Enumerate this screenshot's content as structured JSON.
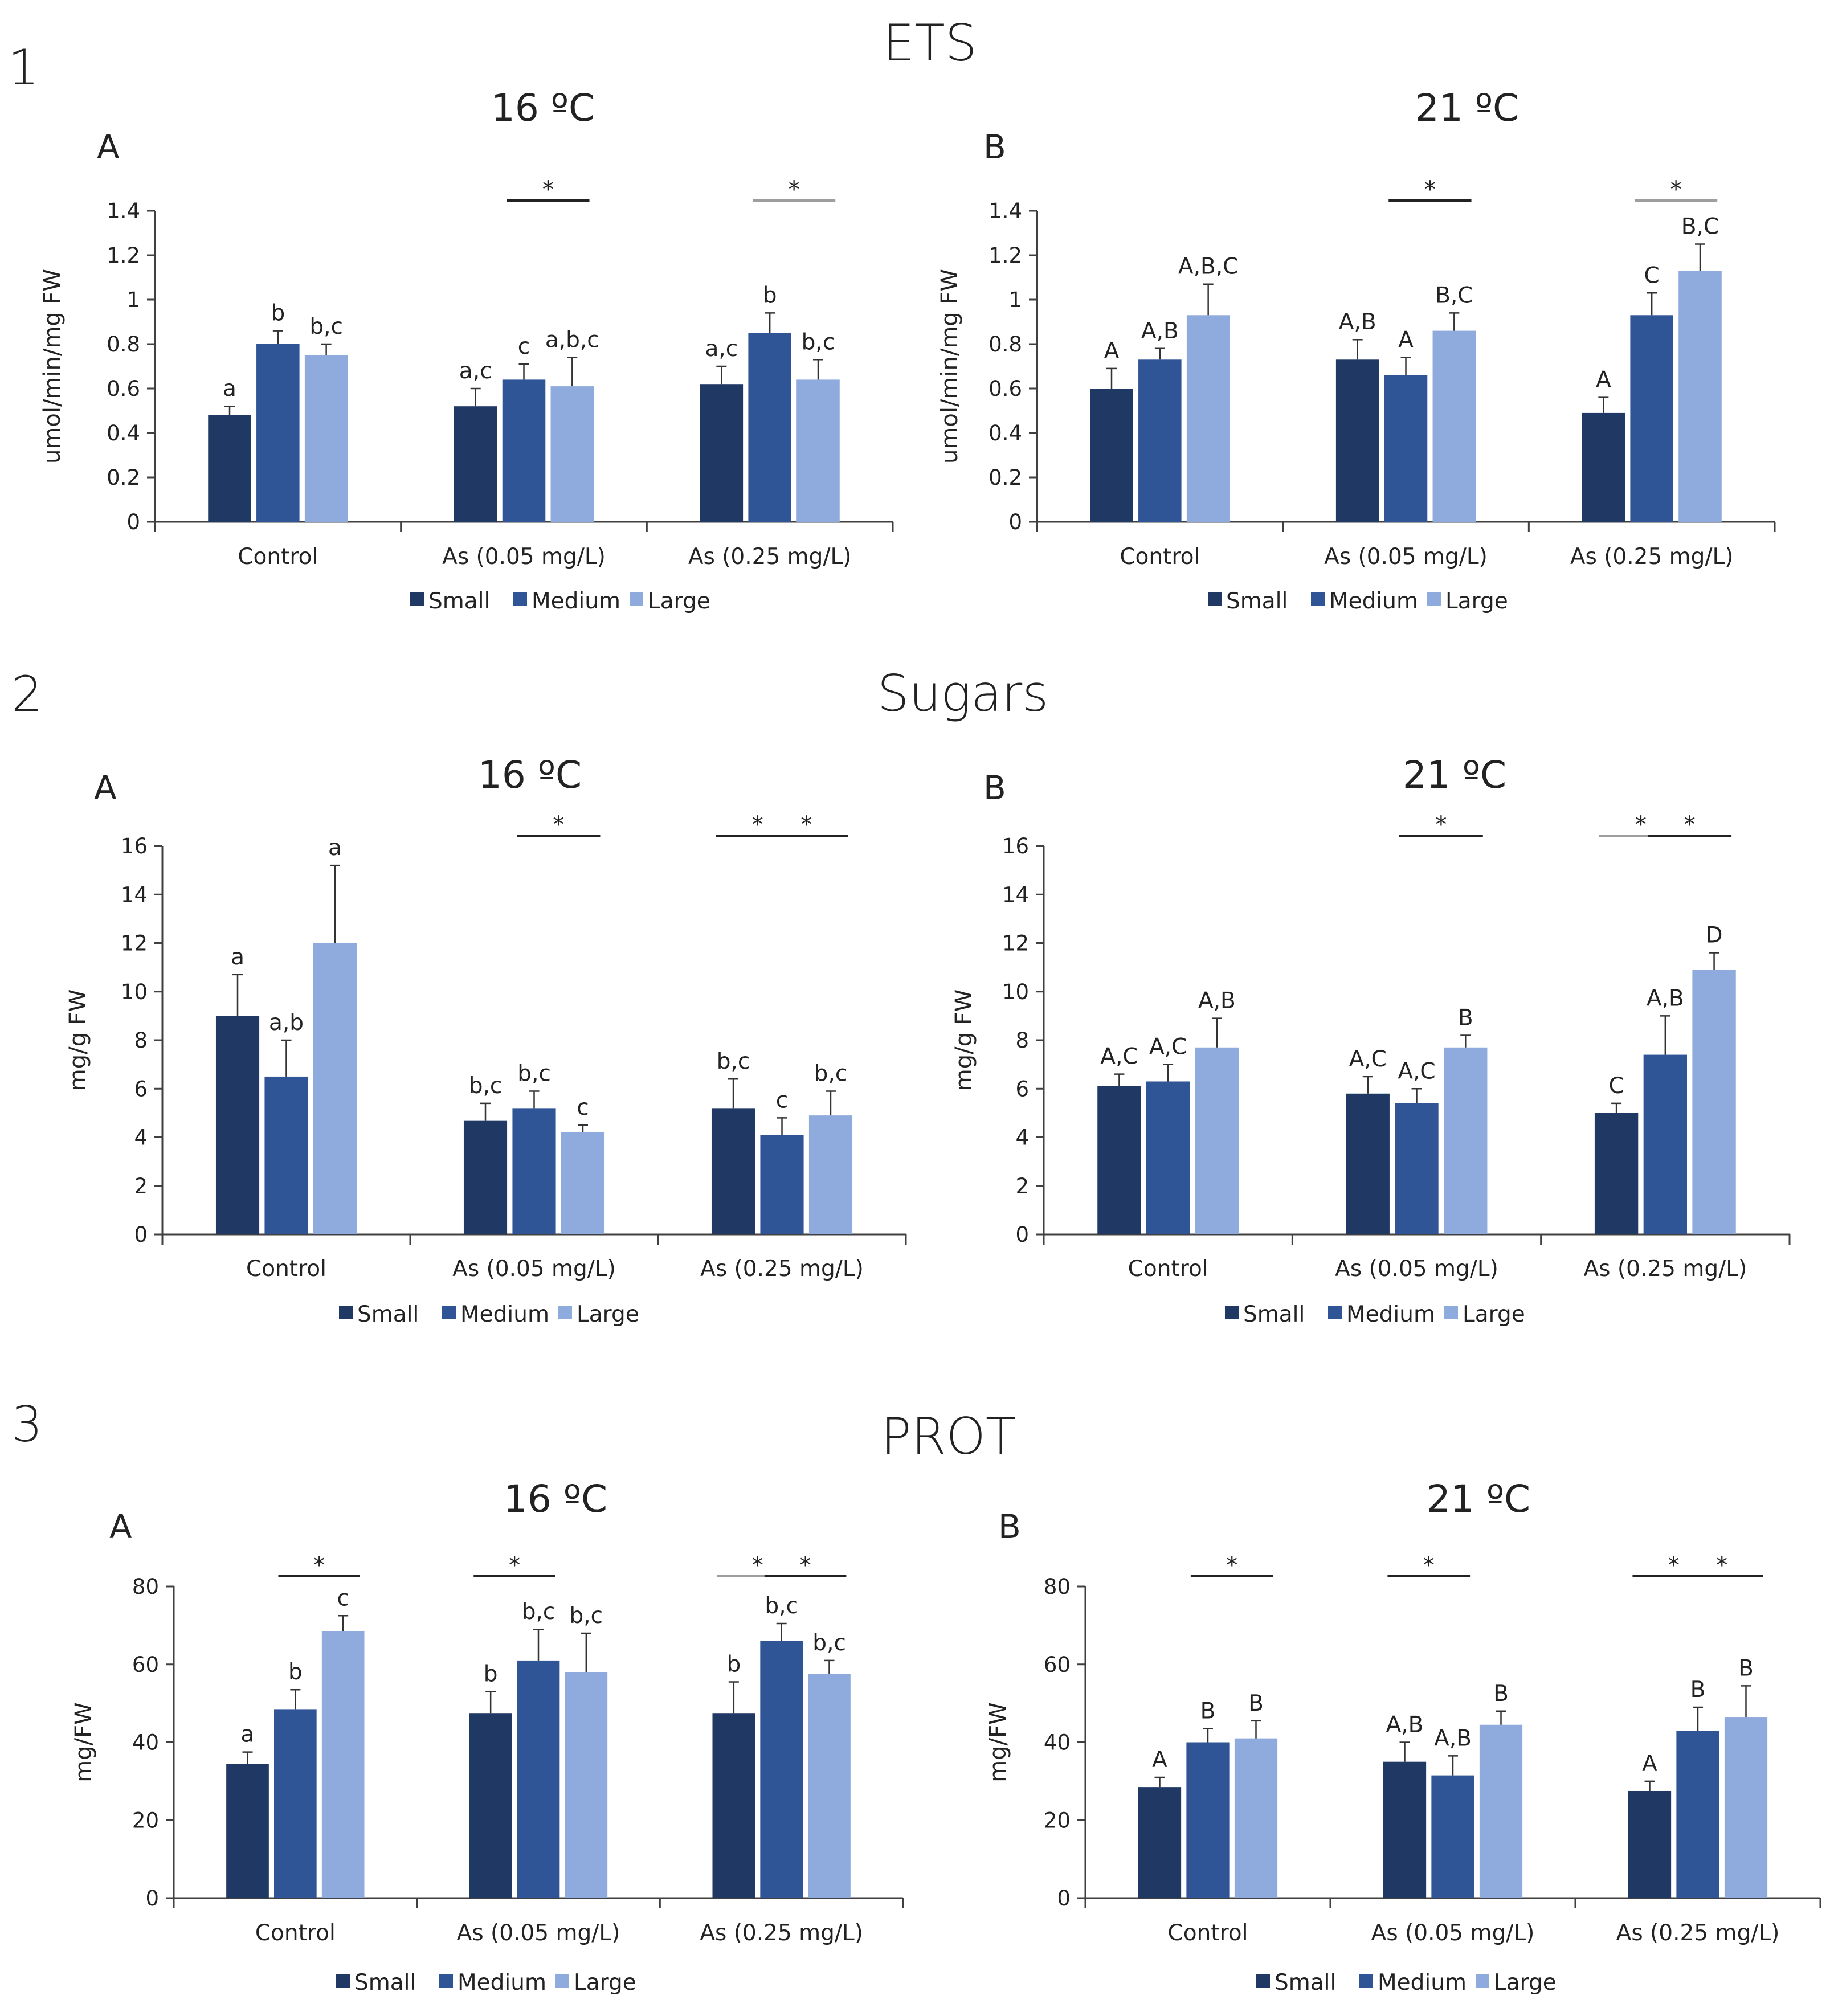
{
  "colors": {
    "Small": "#203864",
    "Medium": "#2f5597",
    "Large": "#8faadc",
    "axis": "#404040",
    "sig_dark": "#222222",
    "sig_light": "#9e9e9e"
  },
  "chart_data": [
    {
      "type": "bar",
      "section": "1",
      "section_title": "ETS",
      "panel": "A",
      "title": "16 ºC",
      "xlabel": "",
      "ylabel": "umol/min/mg FW",
      "ylim": [
        0,
        1.4
      ],
      "yticks": [
        "0",
        "0.2",
        "0.4",
        "0.6",
        "0.8",
        "1",
        "1.2",
        "1.4"
      ],
      "categories": [
        "Control",
        "As (0.05 mg/L)",
        "As (0.25 mg/L)"
      ],
      "series": [
        {
          "name": "Small",
          "values": [
            0.48,
            0.52,
            0.62
          ],
          "errors": [
            0.04,
            0.08,
            0.08
          ],
          "labels": [
            "a",
            "a,c",
            "a,c"
          ]
        },
        {
          "name": "Medium",
          "values": [
            0.8,
            0.64,
            0.85
          ],
          "errors": [
            0.06,
            0.07,
            0.09
          ],
          "labels": [
            "b",
            "c",
            "b"
          ]
        },
        {
          "name": "Large",
          "values": [
            0.75,
            0.61,
            0.64
          ],
          "errors": [
            0.05,
            0.13,
            0.09
          ],
          "labels": [
            "b,c",
            "a,b,c",
            "b,c"
          ]
        }
      ],
      "significance": [
        {
          "category": 1,
          "from": "Medium",
          "to": "Large",
          "label": "*",
          "tone": "dark"
        },
        {
          "category": 2,
          "from": "Medium",
          "to": "Large",
          "label": "*",
          "tone": "light"
        }
      ],
      "legend": [
        "Small",
        "Medium",
        "Large"
      ]
    },
    {
      "type": "bar",
      "section": "1",
      "section_title": "ETS",
      "panel": "B",
      "title": "21 ºC",
      "xlabel": "",
      "ylabel": "umol/min/mg FW",
      "ylim": [
        0,
        1.4
      ],
      "yticks": [
        "0",
        "0.2",
        "0.4",
        "0.6",
        "0.8",
        "1",
        "1.2",
        "1.4"
      ],
      "categories": [
        "Control",
        "As (0.05 mg/L)",
        "As (0.25 mg/L)"
      ],
      "series": [
        {
          "name": "Small",
          "values": [
            0.6,
            0.73,
            0.49
          ],
          "errors": [
            0.09,
            0.09,
            0.07
          ],
          "labels": [
            "A",
            "A,B",
            "A"
          ]
        },
        {
          "name": "Medium",
          "values": [
            0.73,
            0.66,
            0.93
          ],
          "errors": [
            0.05,
            0.08,
            0.1
          ],
          "labels": [
            "A,B",
            "A",
            "C"
          ]
        },
        {
          "name": "Large",
          "values": [
            0.93,
            0.86,
            1.13
          ],
          "errors": [
            0.14,
            0.08,
            0.12
          ],
          "labels": [
            "A,B,C",
            "B,C",
            "B,C"
          ]
        }
      ],
      "significance": [
        {
          "category": 1,
          "from": "Medium",
          "to": "Large",
          "label": "*",
          "tone": "dark"
        },
        {
          "category": 2,
          "from": "Medium",
          "to": "Large",
          "label": "*",
          "tone": "light"
        }
      ],
      "legend": [
        "Small",
        "Medium",
        "Large"
      ]
    },
    {
      "type": "bar",
      "section": "2",
      "section_title": "Sugars",
      "panel": "A",
      "title": "16 ºC",
      "xlabel": "",
      "ylabel": "mg/g FW",
      "ylim": [
        0,
        16
      ],
      "yticks": [
        "0",
        "2",
        "4",
        "6",
        "8",
        "10",
        "12",
        "14",
        "16"
      ],
      "categories": [
        "Control",
        "As (0.05 mg/L)",
        "As (0.25 mg/L)"
      ],
      "series": [
        {
          "name": "Small",
          "values": [
            9.0,
            4.7,
            5.2
          ],
          "errors": [
            1.7,
            0.7,
            1.2
          ],
          "labels": [
            "a",
            "b,c",
            "b,c"
          ]
        },
        {
          "name": "Medium",
          "values": [
            6.5,
            5.2,
            4.1
          ],
          "errors": [
            1.5,
            0.7,
            0.7
          ],
          "labels": [
            "a,b",
            "b,c",
            "c"
          ]
        },
        {
          "name": "Large",
          "values": [
            12.0,
            4.2,
            4.9
          ],
          "errors": [
            3.2,
            0.3,
            1.0
          ],
          "labels": [
            "a",
            "c",
            "b,c"
          ]
        }
      ],
      "significance": [
        {
          "category": 1,
          "from": "Medium",
          "to": "Large",
          "label": "*",
          "tone": "dark"
        },
        {
          "category": 2,
          "from": "Small",
          "to": "Medium",
          "label": "*",
          "tone": "dark"
        },
        {
          "category": 2,
          "from": "Medium",
          "to": "Large",
          "label": "*",
          "tone": "dark"
        }
      ],
      "legend": [
        "Small",
        "Medium",
        "Large"
      ]
    },
    {
      "type": "bar",
      "section": "2",
      "section_title": "Sugars",
      "panel": "B",
      "title": "21 ºC",
      "xlabel": "",
      "ylabel": "mg/g FW",
      "ylim": [
        0,
        16
      ],
      "yticks": [
        "0",
        "2",
        "4",
        "6",
        "8",
        "10",
        "12",
        "14",
        "16"
      ],
      "categories": [
        "Control",
        "As (0.05 mg/L)",
        "As (0.25 mg/L)"
      ],
      "series": [
        {
          "name": "Small",
          "values": [
            6.1,
            5.8,
            5.0
          ],
          "errors": [
            0.5,
            0.7,
            0.4
          ],
          "labels": [
            "A,C",
            "A,C",
            "C"
          ]
        },
        {
          "name": "Medium",
          "values": [
            6.3,
            5.4,
            7.4
          ],
          "errors": [
            0.7,
            0.6,
            1.6
          ],
          "labels": [
            "A,C",
            "A,C",
            "A,B"
          ]
        },
        {
          "name": "Large",
          "values": [
            7.7,
            7.7,
            10.9
          ],
          "errors": [
            1.2,
            0.5,
            0.7
          ],
          "labels": [
            "A,B",
            "B",
            "D"
          ]
        }
      ],
      "significance": [
        {
          "category": 1,
          "from": "Medium",
          "to": "Large",
          "label": "*",
          "tone": "dark"
        },
        {
          "category": 2,
          "from": "Small",
          "to": "Medium",
          "label": "*",
          "tone": "light"
        },
        {
          "category": 2,
          "from": "Medium",
          "to": "Large",
          "label": "*",
          "tone": "dark"
        }
      ],
      "legend": [
        "Small",
        "Medium",
        "Large"
      ]
    },
    {
      "type": "bar",
      "section": "3",
      "section_title": "PROT",
      "panel": "A",
      "title": "16 ºC",
      "xlabel": "",
      "ylabel": "mg/FW",
      "ylim": [
        0,
        80
      ],
      "yticks": [
        "0",
        "20",
        "40",
        "60",
        "80"
      ],
      "categories": [
        "Control",
        "As (0.05 mg/L)",
        "As (0.25 mg/L)"
      ],
      "series": [
        {
          "name": "Small",
          "values": [
            34.5,
            47.5,
            47.5
          ],
          "errors": [
            3.0,
            5.5,
            8.0
          ],
          "labels": [
            "a",
            "b",
            "b"
          ]
        },
        {
          "name": "Medium",
          "values": [
            48.5,
            61.0,
            66.0
          ],
          "errors": [
            5.0,
            8.0,
            4.5
          ],
          "labels": [
            "b",
            "b,c",
            "b,c"
          ]
        },
        {
          "name": "Large",
          "values": [
            68.5,
            58.0,
            57.5
          ],
          "errors": [
            4.0,
            10.0,
            3.5
          ],
          "labels": [
            "c",
            "b,c",
            "b,c"
          ]
        }
      ],
      "significance": [
        {
          "category": 0,
          "from": "Medium",
          "to": "Large",
          "label": "*",
          "tone": "dark"
        },
        {
          "category": 1,
          "from": "Small",
          "to": "Medium",
          "label": "*",
          "tone": "dark"
        },
        {
          "category": 2,
          "from": "Small",
          "to": "Medium",
          "label": "*",
          "tone": "light"
        },
        {
          "category": 2,
          "from": "Medium",
          "to": "Large",
          "label": "*",
          "tone": "dark"
        }
      ],
      "legend": [
        "Small",
        "Medium",
        "Large"
      ]
    },
    {
      "type": "bar",
      "section": "3",
      "section_title": "PROT",
      "panel": "B",
      "title": "21 ºC",
      "xlabel": "",
      "ylabel": "mg/FW",
      "ylim": [
        0,
        80
      ],
      "yticks": [
        "0",
        "20",
        "40",
        "60",
        "80"
      ],
      "categories": [
        "Control",
        "As (0.05 mg/L)",
        "As (0.25 mg/L)"
      ],
      "series": [
        {
          "name": "Small",
          "values": [
            28.5,
            35.0,
            27.5
          ],
          "errors": [
            2.5,
            5.0,
            2.5
          ],
          "labels": [
            "A",
            "A,B",
            "A"
          ]
        },
        {
          "name": "Medium",
          "values": [
            40.0,
            31.5,
            43.0
          ],
          "errors": [
            3.5,
            5.0,
            6.0
          ],
          "labels": [
            "B",
            "A,B",
            "B"
          ]
        },
        {
          "name": "Large",
          "values": [
            41.0,
            44.5,
            46.5
          ],
          "errors": [
            4.5,
            3.5,
            8.0
          ],
          "labels": [
            "B",
            "B",
            "B"
          ]
        }
      ],
      "significance": [
        {
          "category": 0,
          "from": "Medium",
          "to": "Large",
          "label": "*",
          "tone": "dark"
        },
        {
          "category": 1,
          "from": "Small",
          "to": "Medium",
          "label": "*",
          "tone": "dark"
        },
        {
          "category": 2,
          "from": "Small",
          "to": "Medium",
          "label": "*",
          "tone": "dark"
        },
        {
          "category": 2,
          "from": "Medium",
          "to": "Large",
          "label": "*",
          "tone": "dark"
        }
      ],
      "legend": [
        "Small",
        "Medium",
        "Large"
      ]
    }
  ]
}
